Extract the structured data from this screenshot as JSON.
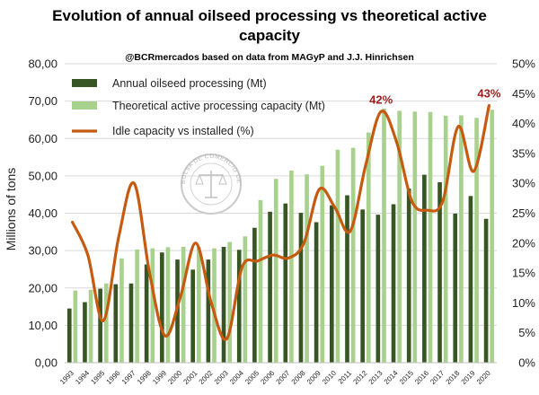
{
  "chart_data": {
    "type": "bar",
    "title": "Evolution of annual oilseed processing vs theoretical active capacity",
    "subtitle": "@BCRmercados based on data from MAGyP and J.J. Hinrichsen",
    "ylabel": "Millions of tons",
    "y2label": "",
    "ylim": [
      0,
      80
    ],
    "y2lim": [
      0,
      50
    ],
    "y_ticks": [
      "0,00",
      "10,00",
      "20,00",
      "30,00",
      "40,00",
      "50,00",
      "60,00",
      "70,00",
      "80,00"
    ],
    "y2_ticks": [
      "0%",
      "5%",
      "10%",
      "15%",
      "20%",
      "25%",
      "30%",
      "35%",
      "40%",
      "45%",
      "50%"
    ],
    "grid": true,
    "legend_position": "top-left",
    "categories": [
      "1993",
      "1994",
      "1995",
      "1996",
      "1997",
      "1998",
      "1999",
      "2000",
      "2001",
      "2002",
      "2003",
      "2004",
      "2005",
      "2006",
      "2007",
      "2008",
      "2009",
      "2010",
      "2011",
      "2012",
      "2013",
      "2014",
      "2015",
      "2016",
      "2017",
      "2018",
      "2019",
      "2020"
    ],
    "series": [
      {
        "name": "Annual oilseed processing (Mt)",
        "kind": "bar",
        "axis": "left",
        "color": "#375623",
        "values": [
          14.5,
          16.2,
          19.8,
          21.0,
          21.2,
          26.3,
          29.5,
          27.6,
          24.9,
          27.6,
          31.0,
          30.2,
          36.1,
          40.4,
          42.6,
          40.1,
          37.6,
          42.1,
          44.8,
          41.0,
          39.6,
          42.4,
          46.6,
          50.3,
          48.3,
          39.9,
          44.6,
          38.5
        ]
      },
      {
        "name": "Theoretical active processing capacity (Mt)",
        "kind": "bar",
        "axis": "left",
        "color": "#a9d18e",
        "values": [
          19.3,
          19.5,
          21.2,
          27.9,
          30.3,
          30.6,
          30.9,
          31.0,
          31.0,
          30.6,
          32.3,
          33.8,
          43.5,
          49.2,
          51.4,
          50.4,
          52.7,
          57.0,
          57.5,
          61.6,
          68.0,
          67.4,
          67.2,
          67.1,
          66.1,
          66.2,
          65.5,
          67.7
        ]
      },
      {
        "name": "Idle capacity vs installed (%)",
        "kind": "line",
        "axis": "right",
        "color": "#c55a11",
        "values": [
          23.5,
          18.0,
          7.0,
          21.0,
          30.0,
          15.0,
          4.5,
          11.0,
          20.0,
          10.0,
          4.0,
          16.0,
          17.0,
          18.0,
          17.5,
          20.0,
          29.0,
          26.0,
          22.0,
          33.0,
          42.0,
          37.0,
          27.0,
          25.5,
          27.0,
          39.5,
          32.0,
          43.0
        ]
      }
    ],
    "annotations": [
      {
        "category": "2013",
        "text": "42%",
        "color": "#9c1f1f"
      },
      {
        "category": "2020",
        "text": "43%",
        "color": "#9c1f1f"
      }
    ],
    "watermark": {
      "text": "BOLSA DE COMERCIO DE ROSARIO",
      "description": "circular seal with scales of justice"
    }
  }
}
